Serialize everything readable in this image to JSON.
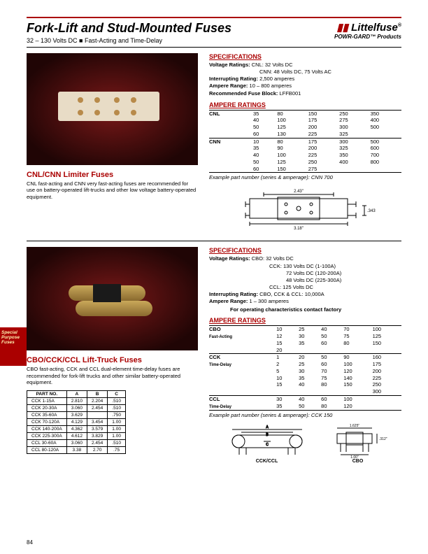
{
  "header": {
    "title": "Fork-Lift and Stud-Mounted Fuses",
    "subtitle": "32 – 130 Volts DC  ■  Fast-Acting and Time-Delay",
    "brand": "Littelfuse",
    "tagline": "POWR-GARD™ Products"
  },
  "sideTab": {
    "l1": "Special",
    "l2": "Purpose",
    "l3": "Fuses"
  },
  "pageNumber": "84",
  "section1": {
    "title": "CNL/CNN Limiter Fuses",
    "desc": "CNL fast-acting and CNN very fast-acting fuses are recommended for use on battery-operated lift-trucks and other low voltage battery-operated equipment.",
    "specTitle": "SPECIFICATIONS",
    "specs": {
      "voltageLabel": "Voltage Ratings:",
      "voltageVal": "CNL: 32 Volts DC",
      "voltageVal2": "CNN: 48 Volts DC, 75 Volts AC",
      "intLabel": "Interrupting Rating:",
      "intVal": "2,500 amperes",
      "rangeLabel": "Ampere Range:",
      "rangeVal": "10 – 800 amperes",
      "blockLabel": "Recommended Fuse Block:",
      "blockVal": "LFFB001"
    },
    "ampTitle": "AMPERE RATINGS",
    "cnl": {
      "label": "CNL",
      "rows": [
        [
          "35",
          "80",
          "150",
          "250",
          "350"
        ],
        [
          "40",
          "100",
          "175",
          "275",
          "400"
        ],
        [
          "50",
          "125",
          "200",
          "300",
          "500"
        ],
        [
          "60",
          "130",
          "225",
          "325",
          ""
        ]
      ]
    },
    "cnn": {
      "label": "CNN",
      "rows": [
        [
          "10",
          "80",
          "175",
          "300",
          "500"
        ],
        [
          "35",
          "90",
          "200",
          "325",
          "600"
        ],
        [
          "40",
          "100",
          "225",
          "350",
          "700"
        ],
        [
          "50",
          "125",
          "250",
          "400",
          "800"
        ],
        [
          "60",
          "150",
          "275",
          "",
          ""
        ]
      ]
    },
    "example": "Example part number (series & amperage): CNN 700",
    "dims": {
      "w": "2.43\"",
      "l": "3.18\"",
      "h": ".343\""
    }
  },
  "section2": {
    "title": "CBO/CCK/CCL Lift-Truck Fuses",
    "desc": "CBO fast-acting, CCK and CCL dual-element time-delay fuses are recommended for fork-lift trucks and other similar battery-operated equipment.",
    "specTitle": "SPECIFICATIONS",
    "specs": {
      "voltageLabel": "Voltage Ratings:",
      "v1": "CBO: 32 Volts DC",
      "v2": "CCK: 130 Volts DC (1-100A)",
      "v3": "72 Volts DC (120-200A)",
      "v4": "48 Volts DC (225-300A)",
      "v5": "CCL: 125 Volts DC",
      "intLabel": "Interrupting Rating:",
      "intVal": "CBO, CCK & CCL: 10,000A",
      "rangeLabel": "Ampere Range:",
      "rangeVal": "1 – 300 amperes",
      "note": "For operating characteristics contact factory"
    },
    "ampTitle": "AMPERE RATINGS",
    "cbo": {
      "label": "CBO",
      "sub": "Fast-Acting",
      "rows": [
        [
          "10",
          "25",
          "40",
          "70",
          "100"
        ],
        [
          "12",
          "30",
          "50",
          "75",
          "125"
        ],
        [
          "15",
          "35",
          "60",
          "80",
          "150"
        ],
        [
          "20",
          "",
          "",
          "",
          ""
        ]
      ]
    },
    "cck": {
      "label": "CCK",
      "sub": "Time-Delay",
      "rows": [
        [
          "1",
          "20",
          "50",
          "90",
          "160"
        ],
        [
          "2",
          "25",
          "60",
          "100",
          "175"
        ],
        [
          "5",
          "30",
          "70",
          "120",
          "200"
        ],
        [
          "10",
          "35",
          "75",
          "140",
          "225"
        ],
        [
          "15",
          "40",
          "80",
          "150",
          "250"
        ],
        [
          "",
          "",
          "",
          "",
          "300"
        ]
      ]
    },
    "ccl": {
      "label": "CCL",
      "sub": "Time-Delay",
      "rows": [
        [
          "30",
          "40",
          "60",
          "100",
          ""
        ],
        [
          "35",
          "50",
          "80",
          "120",
          ""
        ]
      ]
    },
    "example": "Example part number (series & amperage): CCK 150",
    "dimTable": {
      "headers": [
        "PART NO.",
        "A",
        "B",
        "C"
      ],
      "rows": [
        [
          "CCK 1-15A",
          "2.810",
          "2.204",
          ".510"
        ],
        [
          "CCK 20-30A",
          "3.060",
          "2.454",
          ".510"
        ],
        [
          "CCK 35-60A",
          "3.629",
          "",
          ".750"
        ],
        [
          "CCK 70-120A",
          "4.129",
          "3.454",
          "1.00"
        ],
        [
          "CCK 140-200A",
          "4.362",
          "3.579",
          "1.00"
        ],
        [
          "CCK 225-300A",
          "4.612",
          "3.829",
          "1.00"
        ],
        [
          "CCL 30-60A",
          "3.060",
          "2.454",
          ".510"
        ],
        [
          "CCL 80-120A",
          "3.38",
          "2.70",
          ".75"
        ]
      ]
    },
    "diagLabels": {
      "ckk": "CCK/CCL",
      "cbo": "CBO",
      "cboW": "1.625\"",
      "cboH": ".312\"",
      "cboH2": "1.00\""
    }
  }
}
